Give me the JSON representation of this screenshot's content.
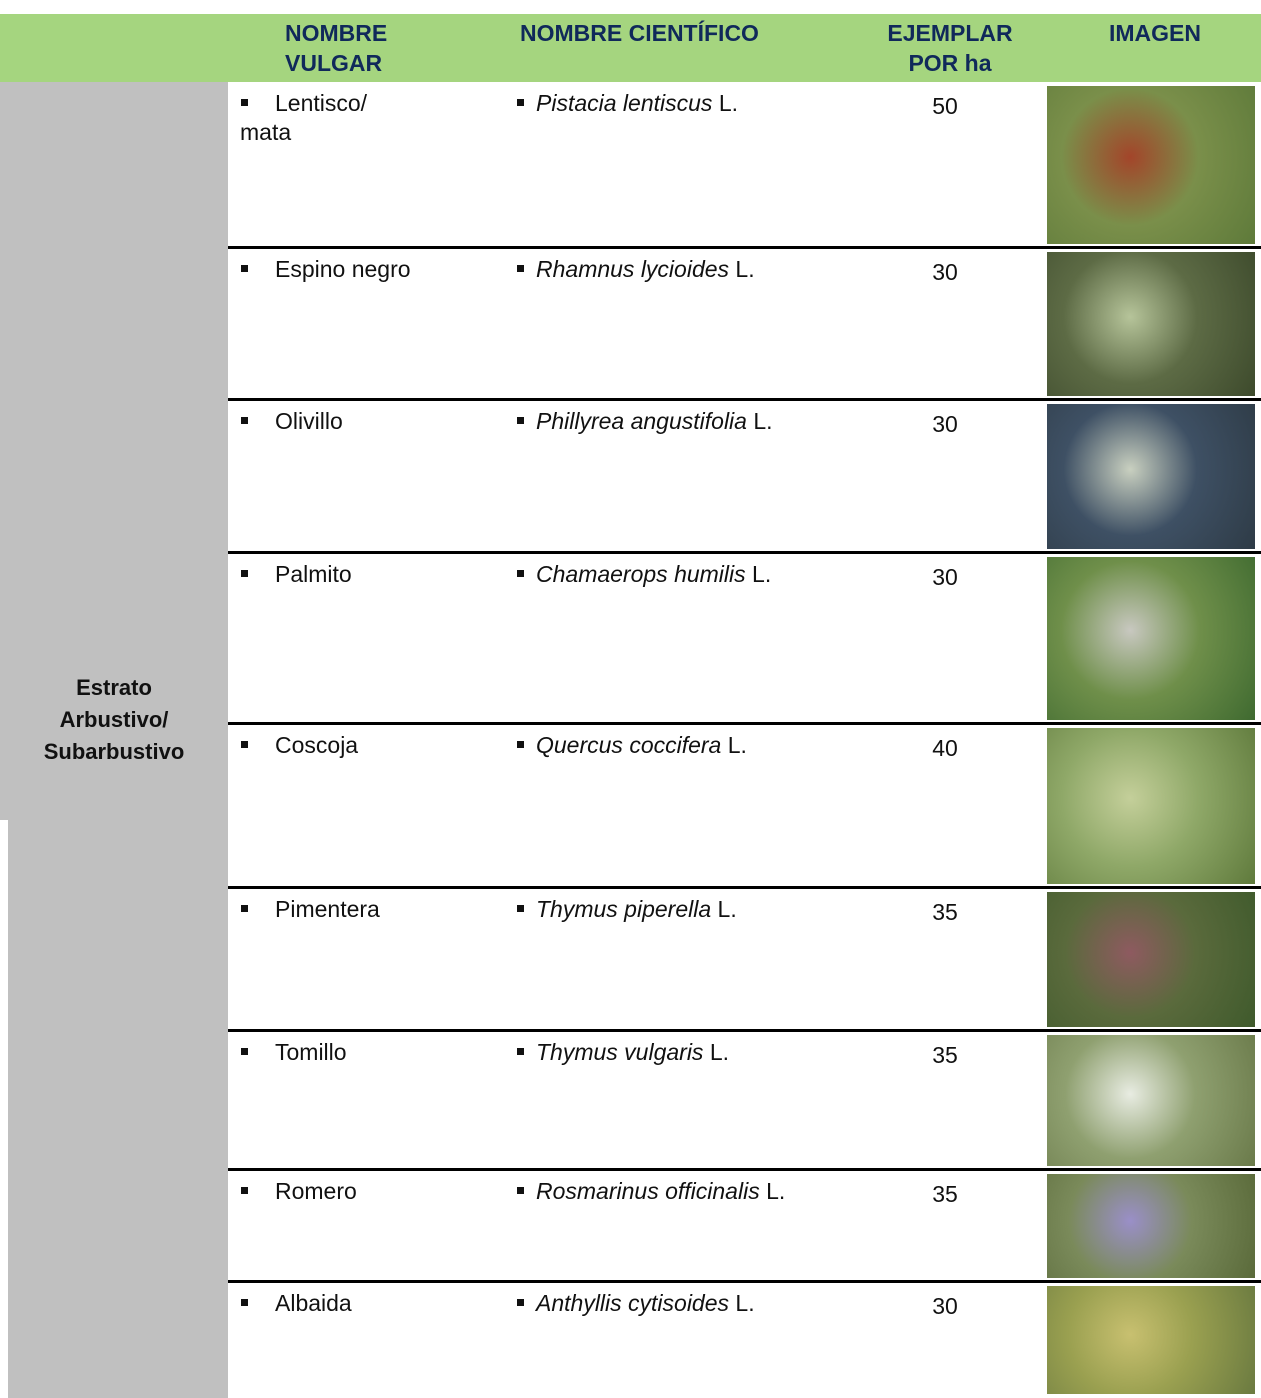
{
  "table": {
    "header": [
      "NOMBRE VULGAR",
      "NOMBRE CIENTÍFICO",
      "EJEMPLAR POR ha",
      "IMAGEN"
    ],
    "group": "Estrato\nArbustivo/\nSubarbustivo",
    "rows": [
      {
        "common": "Lentisco/\nmata",
        "species": "Pistacia lentiscus",
        "author": "L.",
        "count": "50"
      },
      {
        "common": "Espino negro",
        "species": "Rhamnus lycioides",
        "author": "L.",
        "count": "30"
      },
      {
        "common": "Olivillo",
        "species": "Phillyrea angustifolia",
        "author": "L.",
        "count": "30"
      },
      {
        "common": "Palmito",
        "species": "Chamaerops humilis",
        "author": "L.",
        "count": "30"
      },
      {
        "common": "Coscoja",
        "species": "Quercus coccifera",
        "author": "L.",
        "count": "40"
      },
      {
        "common": "Pimentera",
        "species": "Thymus piperella",
        "author": "L.",
        "count": "35"
      },
      {
        "common": "Tomillo",
        "species": "Thymus vulgaris",
        "author": "L.",
        "count": "35"
      },
      {
        "common": "Romero",
        "species": "Rosmarinus officinalis",
        "author": "L.",
        "count": "35"
      },
      {
        "common": "Albaida",
        "species": "Anthyllis cytisoides",
        "author": "L.",
        "count": "30"
      }
    ]
  }
}
